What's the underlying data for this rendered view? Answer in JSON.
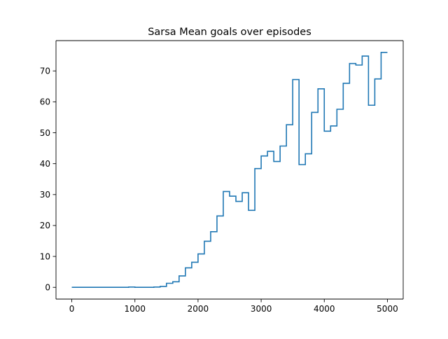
{
  "chart_data": {
    "type": "line",
    "title": "Sarsa Mean goals over episodes",
    "xlabel": "",
    "ylabel": "",
    "xlim": [
      -250,
      5250
    ],
    "ylim": [
      -3.8,
      79.8
    ],
    "xticks": [
      0,
      1000,
      2000,
      3000,
      4000,
      5000
    ],
    "xtick_labels": [
      "0",
      "1000",
      "2000",
      "3000",
      "4000",
      "5000"
    ],
    "yticks": [
      0,
      10,
      20,
      30,
      40,
      50,
      60,
      70
    ],
    "ytick_labels": [
      "0",
      "10",
      "20",
      "30",
      "40",
      "50",
      "60",
      "70"
    ],
    "grid": false,
    "line_color": "#1f77b4",
    "series": [
      {
        "drawstyle": "steps-post",
        "x": [
          0,
          100,
          200,
          300,
          400,
          500,
          600,
          700,
          800,
          900,
          1000,
          1100,
          1200,
          1300,
          1400,
          1500,
          1600,
          1700,
          1800,
          1900,
          2000,
          2100,
          2200,
          2300,
          2400,
          2500,
          2600,
          2700,
          2800,
          2900,
          3000,
          3100,
          3200,
          3300,
          3400,
          3500,
          3600,
          3700,
          3800,
          3900,
          4000,
          4100,
          4200,
          4300,
          4400,
          4500,
          4600,
          4700,
          4800,
          4900,
          5000
        ],
        "y": [
          0,
          0,
          0,
          0,
          0,
          0,
          0,
          0,
          0,
          0.1,
          0,
          0,
          0,
          0.1,
          0.3,
          1.3,
          1.8,
          3.7,
          6.3,
          8.1,
          10.8,
          14.9,
          18.0,
          23.1,
          31.0,
          29.5,
          27.8,
          30.6,
          24.9,
          38.4,
          42.5,
          44.0,
          40.7,
          45.7,
          52.6,
          67.2,
          39.7,
          43.2,
          56.6,
          64.2,
          50.5,
          52.2,
          57.6,
          66.0,
          72.4,
          71.9,
          74.8,
          58.9,
          67.4,
          76.0,
          76.0
        ]
      }
    ]
  }
}
